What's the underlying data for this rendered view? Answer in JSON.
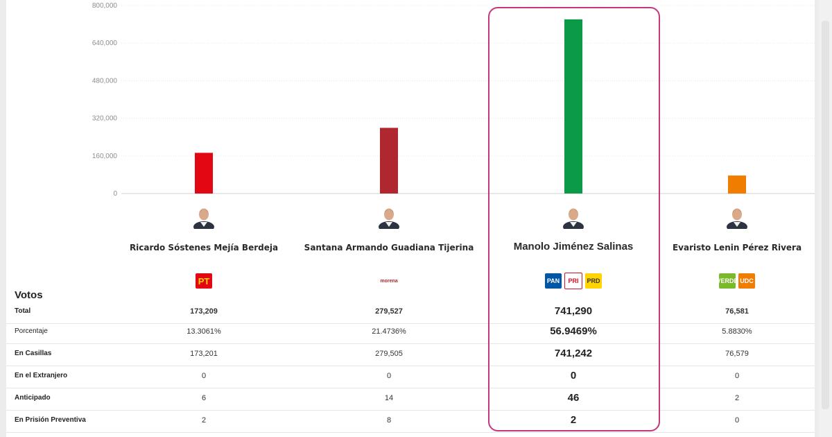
{
  "chart_data": {
    "type": "bar",
    "categories": [
      "Ricardo Sóstenes Mejía Berdeja",
      "Santana Armando Guadiana Tijerina",
      "Manolo Jiménez Salinas",
      "Evaristo Lenin Pérez Rivera"
    ],
    "values": [
      173209,
      279527,
      741290,
      76581
    ],
    "colors": [
      "#e30613",
      "#b0272f",
      "#0b9a48",
      "#f07d00"
    ],
    "ylim": [
      0,
      800000
    ],
    "yticks": [
      0,
      160000,
      320000,
      480000,
      640000,
      800000
    ],
    "ytick_labels": [
      "0",
      "160,000",
      "320,000",
      "480,000",
      "640,000",
      "800,000"
    ],
    "grid": true,
    "legend": "none",
    "highlighted": "Manolo Jiménez Salinas"
  },
  "candidates": [
    {
      "name": "Ricardo Sóstenes Mejía Berdeja",
      "party_logos": [
        {
          "text": "PT",
          "color": "#e30613",
          "text_color": "#ffd400"
        }
      ]
    },
    {
      "name": "Santana Armando Guadiana Tijerina",
      "party_logos": [
        {
          "text": "morena",
          "color": "#ffffff",
          "text_color": "#b0272f"
        }
      ]
    },
    {
      "name": "Manolo Jiménez Salinas",
      "party_logos": [
        {
          "text": "PAN",
          "color": "#0055a5",
          "text_color": "#ffffff"
        },
        {
          "text": "PRI",
          "color": "#ffffff",
          "text_color": "#d0112b"
        },
        {
          "text": "PRD",
          "color": "#ffd400",
          "text_color": "#333333"
        }
      ]
    },
    {
      "name": "Evaristo Lenin Pérez Rivera",
      "party_logos": [
        {
          "text": "VERDE",
          "color": "#7ab929",
          "text_color": "#ffffff"
        },
        {
          "text": "UDC",
          "color": "#f07d00",
          "text_color": "#ffffff"
        }
      ]
    }
  ],
  "table": {
    "title": "Votos",
    "rows": [
      {
        "label": "Total",
        "values": [
          "173,209",
          "279,527",
          "741,290",
          "76,581"
        ]
      },
      {
        "label": "Porcentaje",
        "values": [
          "13.3061%",
          "21.4736%",
          "56.9469%",
          "5.8830%"
        ]
      },
      {
        "label": "En Casillas",
        "values": [
          "173,201",
          "279,505",
          "741,242",
          "76,579"
        ]
      },
      {
        "label": "En el Extranjero",
        "values": [
          "0",
          "0",
          "0",
          "0"
        ]
      },
      {
        "label": "Anticipado",
        "values": [
          "6",
          "14",
          "46",
          "2"
        ]
      },
      {
        "label": "En Prisión Preventiva",
        "values": [
          "2",
          "8",
          "2",
          "0"
        ]
      }
    ]
  }
}
